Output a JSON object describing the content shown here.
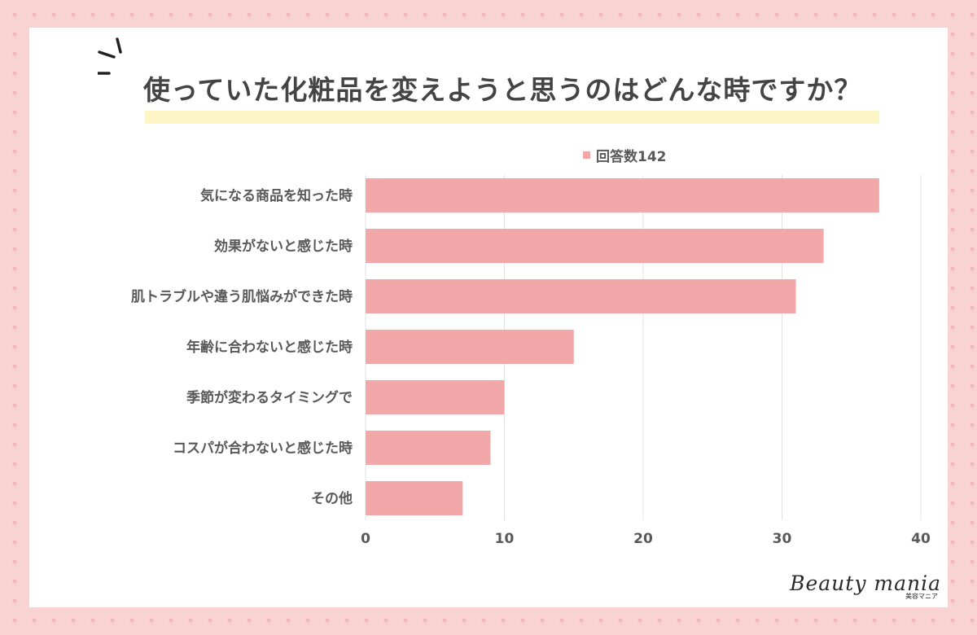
{
  "title": "使っていた化粧品を変えようと思うのはどんな時ですか？",
  "chart_data": {
    "type": "bar",
    "orientation": "horizontal",
    "categories": [
      "気になる商品を知った時",
      "効果がないと感じた時",
      "肌トラブルや違う肌悩みができた時",
      "年齢に合わないと感じた時",
      "季節が変わるタイミングで",
      "コスパが合わないと感じた時",
      "その他"
    ],
    "series": [
      {
        "name": "回答数142",
        "values": [
          37,
          33,
          31,
          15,
          10,
          9,
          7
        ]
      }
    ],
    "xlim": [
      0,
      40
    ],
    "xticks": [
      "0",
      "10",
      "20",
      "30",
      "40"
    ],
    "grid": true,
    "legend": "top",
    "bar_color": "#f2a8a8"
  },
  "brand": {
    "name": "Beauty mania",
    "sub": "美容マニア"
  }
}
